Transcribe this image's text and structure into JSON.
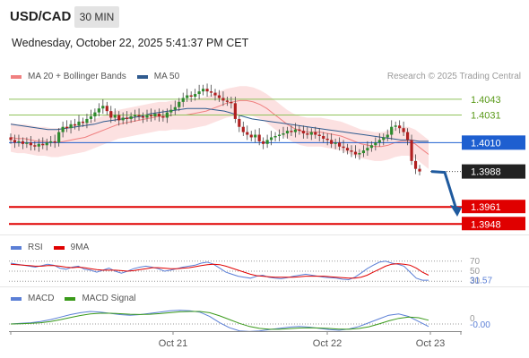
{
  "header": {
    "symbol": "USD/CAD",
    "timeframe": "30 MIN",
    "datetime": "Wednesday, October 22, 2025 5:41:37 PM CET"
  },
  "legend": {
    "ma20_label": "MA 20 + Bollinger Bands",
    "ma50_label": "MA 50",
    "ma20_color": "#f08080",
    "ma50_color": "#2f5b8f",
    "credit": "Research © 2025 Trading Central"
  },
  "rsi_legend": {
    "rsi_label": "RSI",
    "ma_label": "9MA",
    "rsi_color": "#5b7fd6",
    "ma_color": "#e00000"
  },
  "macd_legend": {
    "macd_label": "MACD",
    "signal_label": "MACD Signal",
    "macd_color": "#5b7fd6",
    "signal_color": "#3a9a1a"
  },
  "chart_data": [
    {
      "type": "candlestick",
      "title": "USD/CAD 30 MIN",
      "ylim": [
        1.394,
        1.406
      ],
      "x_tick_labels": [
        "Oct 21",
        "Oct 22",
        "Oct 23"
      ],
      "price_levels": [
        {
          "value": 1.4043,
          "label": "1.4043",
          "kind": "resistance",
          "color": "#8fc25a"
        },
        {
          "value": 1.4031,
          "label": "1.4031",
          "kind": "resistance",
          "color": "#8fc25a"
        },
        {
          "value": 1.401,
          "label": "1.4010",
          "kind": "pivot",
          "color": "#1e5fd0"
        },
        {
          "value": 1.3988,
          "label": "1.3988",
          "kind": "last_price",
          "color": "#222222"
        },
        {
          "value": 1.3961,
          "label": "1.3961",
          "kind": "target",
          "color": "#e00000"
        },
        {
          "value": 1.3948,
          "label": "1.3948",
          "kind": "target",
          "color": "#e00000"
        }
      ],
      "close": [
        1.4012,
        1.401,
        1.4011,
        1.4009,
        1.401,
        1.4008,
        1.4007,
        1.4009,
        1.4008,
        1.401,
        1.4011,
        1.401,
        1.4018,
        1.4022,
        1.4021,
        1.4024,
        1.4023,
        1.4026,
        1.4025,
        1.4028,
        1.403,
        1.4033,
        1.4036,
        1.4038,
        1.4034,
        1.4029,
        1.4031,
        1.4027,
        1.4029,
        1.4028,
        1.403,
        1.4031,
        1.403,
        1.4029,
        1.4031,
        1.403,
        1.4032,
        1.403,
        1.4029,
        1.4033,
        1.4035,
        1.4037,
        1.4041,
        1.4044,
        1.4046,
        1.4045,
        1.4047,
        1.4049,
        1.4051,
        1.4049,
        1.4048,
        1.4046,
        1.4044,
        1.4042,
        1.4041,
        1.404,
        1.4028,
        1.4022,
        1.4018,
        1.4016,
        1.4014,
        1.4016,
        1.4011,
        1.4009,
        1.4012,
        1.4014,
        1.4015,
        1.4016,
        1.4017,
        1.4019,
        1.4018,
        1.402,
        1.4019,
        1.4017,
        1.4016,
        1.4018,
        1.4016,
        1.4015,
        1.4013,
        1.4012,
        1.4009,
        1.401,
        1.4007,
        1.4006,
        1.4004,
        1.4003,
        1.4001,
        1.4002,
        1.4004,
        1.4006,
        1.4008,
        1.401,
        1.4012,
        1.4014,
        1.4016,
        1.4022,
        1.4023,
        1.4021,
        1.4018,
        1.4012,
        1.3996,
        1.399,
        1.3988
      ],
      "ma20_approx": [
        1.4014,
        1.4013,
        1.4013,
        1.4012,
        1.4011,
        1.4011,
        1.401,
        1.401,
        1.4011,
        1.4012,
        1.4013,
        1.4014,
        1.4016,
        1.4018,
        1.402,
        1.4022,
        1.4024,
        1.4025,
        1.4026,
        1.4027,
        1.4028,
        1.4029,
        1.403,
        1.403,
        1.4031,
        1.4031,
        1.4031,
        1.4032,
        1.4033,
        1.4034,
        1.4036,
        1.4038,
        1.404,
        1.4041,
        1.4042,
        1.4042,
        1.4041,
        1.4039,
        1.4036,
        1.4032,
        1.4028,
        1.4024,
        1.4021,
        1.4019,
        1.4018,
        1.4018,
        1.4018,
        1.4017,
        1.4016,
        1.4015,
        1.4013,
        1.4011,
        1.4009,
        1.4008,
        1.4007,
        1.4007,
        1.4008,
        1.401,
        1.4011,
        1.4011,
        1.4009,
        1.4005,
        1.4001
      ],
      "ma50_approx": [
        1.4024,
        1.4023,
        1.4022,
        1.4021,
        1.402,
        1.402,
        1.4021,
        1.4022,
        1.4023,
        1.4024,
        1.4026,
        1.4027,
        1.4028,
        1.4029,
        1.403,
        1.4032,
        1.4033,
        1.4034,
        1.4035,
        1.4036,
        1.4036,
        1.4036,
        1.4035,
        1.4034,
        1.4032,
        1.403,
        1.4028,
        1.4027,
        1.4026,
        1.4025,
        1.4024,
        1.4023,
        1.4022,
        1.4021,
        1.402,
        1.4019,
        1.4018,
        1.4017,
        1.4016,
        1.4015,
        1.4014,
        1.4013,
        1.4012,
        1.4012,
        1.4011,
        1.4011
      ],
      "forecast_arrow": {
        "from": 1.3988,
        "to": 1.3955
      }
    },
    {
      "type": "line",
      "title": "RSI",
      "levels": [
        70,
        50,
        30
      ],
      "level_labels": [
        "70",
        "50",
        "30"
      ],
      "last_value": 31.57,
      "last_label": "31.57",
      "series": [
        {
          "name": "RSI",
          "values": [
            66,
            64,
            62,
            60,
            58,
            61,
            64,
            62,
            56,
            54,
            58,
            60,
            54,
            52,
            48,
            52,
            56,
            50,
            46,
            50,
            55,
            58,
            60,
            58,
            55,
            50,
            52,
            55,
            58,
            60,
            62,
            66,
            68,
            64,
            56,
            48,
            44,
            40,
            38,
            36,
            40,
            42,
            38,
            36,
            35,
            37,
            40,
            42,
            44,
            42,
            40,
            38,
            37,
            36,
            34,
            33,
            38,
            46,
            55,
            62,
            68,
            70,
            66,
            64,
            60,
            48,
            36,
            32,
            32
          ]
        },
        {
          "name": "9MA",
          "values": [
            64,
            63,
            62,
            61,
            60,
            60,
            61,
            61,
            60,
            58,
            57,
            58,
            57,
            55,
            53,
            52,
            52,
            52,
            51,
            50,
            51,
            53,
            55,
            57,
            57,
            56,
            55,
            55,
            56,
            57,
            59,
            61,
            63,
            64,
            63,
            60,
            56,
            52,
            48,
            44,
            41,
            40,
            39,
            38,
            38,
            38,
            38,
            39,
            40,
            40,
            40,
            40,
            39,
            38,
            37,
            36,
            36,
            38,
            42,
            48,
            54,
            60,
            64,
            65,
            64,
            62,
            56,
            48,
            42
          ]
        }
      ]
    },
    {
      "type": "line",
      "title": "MACD",
      "zero_label": "0",
      "last_value": -0.0,
      "last_label": "-0.00",
      "series": [
        {
          "name": "MACD",
          "values": [
            0,
            0.05,
            0.1,
            0.2,
            0.35,
            0.55,
            0.75,
            0.9,
            1.0,
            0.95,
            0.85,
            0.75,
            0.7,
            0.75,
            0.85,
            0.95,
            1.05,
            1.1,
            1.05,
            0.95,
            0.6,
            0.1,
            -0.3,
            -0.55,
            -0.6,
            -0.55,
            -0.45,
            -0.35,
            -0.25,
            -0.2,
            -0.25,
            -0.35,
            -0.45,
            -0.5,
            -0.4,
            -0.2,
            0.1,
            0.4,
            0.7,
            0.8,
            0.6,
            0.2,
            -0.2
          ]
        },
        {
          "name": "MACD Signal",
          "values": [
            0,
            0.02,
            0.05,
            0.1,
            0.2,
            0.35,
            0.52,
            0.68,
            0.8,
            0.86,
            0.86,
            0.82,
            0.78,
            0.76,
            0.78,
            0.83,
            0.9,
            0.97,
            1.0,
            1.0,
            0.9,
            0.65,
            0.35,
            0.05,
            -0.2,
            -0.35,
            -0.42,
            -0.42,
            -0.38,
            -0.32,
            -0.3,
            -0.32,
            -0.36,
            -0.41,
            -0.42,
            -0.36,
            -0.22,
            0.0,
            0.25,
            0.45,
            0.55,
            0.5,
            0.3
          ]
        }
      ]
    }
  ]
}
